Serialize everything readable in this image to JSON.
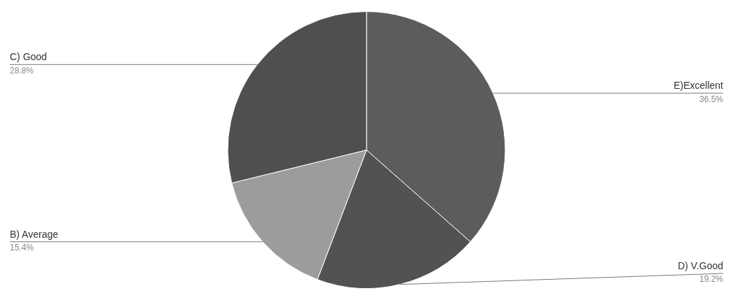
{
  "chart_data": {
    "type": "pie",
    "categories": [
      "E)Excellent",
      "D) V.Good",
      "B) Average",
      "C) Good"
    ],
    "values": [
      36.5,
      19.2,
      15.4,
      28.8
    ],
    "value_labels": [
      "36.5%",
      "19.2%",
      "15.4%",
      "28.8%"
    ],
    "colors": [
      "#5c5c5c",
      "#525252",
      "#9c9c9c",
      "#4f4f4f"
    ],
    "legend": false
  }
}
